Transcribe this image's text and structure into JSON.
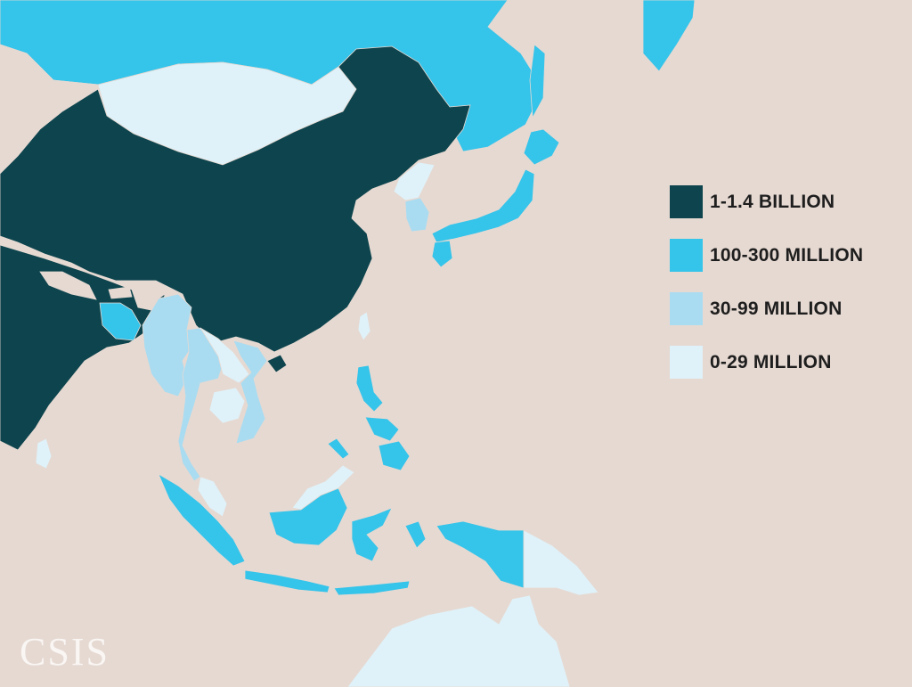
{
  "colors": {
    "land_other": "#e6d9d2",
    "sea": "#cfe7f2",
    "bin_1_1_4_billion": "#0d444d",
    "bin_100_300_million": "#35c4ea",
    "bin_30_99_million": "#a9dcf1",
    "bin_0_29_million": "#dff2f9"
  },
  "legend": [
    {
      "label": "1-1.4 BILLION",
      "color": "#0d444d"
    },
    {
      "label": "100-300 MILLION",
      "color": "#35c4ea"
    },
    {
      "label": "30-99 MILLION",
      "color": "#a9dcf1"
    },
    {
      "label": "0-29 MILLION",
      "color": "#dff2f9"
    }
  ],
  "watermark": "CSIS",
  "countries": [
    {
      "name": "China",
      "bin": "1-1.4 BILLION"
    },
    {
      "name": "India",
      "bin": "1-1.4 BILLION"
    },
    {
      "name": "Japan",
      "bin": "100-300 MILLION"
    },
    {
      "name": "Indonesia",
      "bin": "100-300 MILLION"
    },
    {
      "name": "Philippines",
      "bin": "100-300 MILLION"
    },
    {
      "name": "Bangladesh",
      "bin": "100-300 MILLION"
    },
    {
      "name": "Russia",
      "bin": "100-300 MILLION"
    },
    {
      "name": "South Korea",
      "bin": "30-99 MILLION"
    },
    {
      "name": "Myanmar",
      "bin": "30-99 MILLION"
    },
    {
      "name": "Thailand",
      "bin": "30-99 MILLION"
    },
    {
      "name": "Vietnam",
      "bin": "30-99 MILLION"
    },
    {
      "name": "Malaysia",
      "bin": "0-29 MILLION"
    },
    {
      "name": "Mongolia",
      "bin": "0-29 MILLION"
    },
    {
      "name": "North Korea",
      "bin": "0-29 MILLION"
    },
    {
      "name": "Laos",
      "bin": "0-29 MILLION"
    },
    {
      "name": "Cambodia",
      "bin": "0-29 MILLION"
    },
    {
      "name": "Papua New Guinea",
      "bin": "0-29 MILLION"
    },
    {
      "name": "Australia",
      "bin": "0-29 MILLION"
    },
    {
      "name": "Sri Lanka",
      "bin": "0-29 MILLION"
    },
    {
      "name": "Taiwan",
      "bin": "0-29 MILLION"
    }
  ]
}
